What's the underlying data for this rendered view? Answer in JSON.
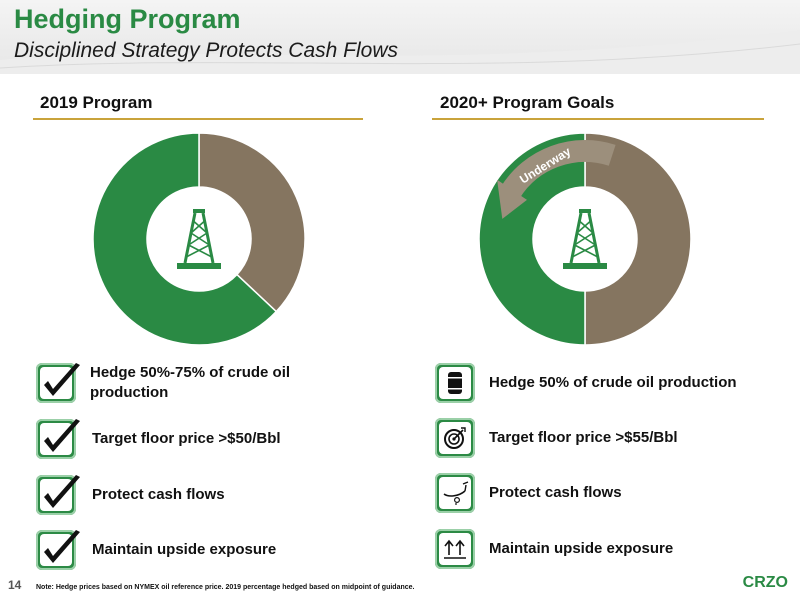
{
  "header": {
    "title": "Hedging Program",
    "subtitle": "Disciplined Strategy Protects Cash Flows"
  },
  "left": {
    "title": "2019 Program",
    "chart_data": {
      "type": "pie",
      "style": "donut",
      "slices": [
        {
          "value": 37,
          "color": "#857560"
        },
        {
          "value": 63,
          "color": "#2a8a44"
        }
      ],
      "center_icon": "oil-derrick-icon"
    },
    "items": [
      {
        "icon": "checkmark-icon",
        "label": "Hedge 50%-75% of crude oil production"
      },
      {
        "icon": "checkmark-icon",
        "label": "Target floor price >$50/Bbl"
      },
      {
        "icon": "checkmark-icon",
        "label": "Protect cash flows"
      },
      {
        "icon": "checkmark-icon",
        "label": "Maintain upside exposure"
      }
    ]
  },
  "right": {
    "title": "2020+ Program Goals",
    "chart_data": {
      "type": "pie",
      "style": "donut",
      "slices": [
        {
          "value": 50,
          "color": "#857560"
        },
        {
          "value": 50,
          "color": "#2a8a44"
        }
      ],
      "arrow_label": "Underway",
      "center_icon": "oil-derrick-icon"
    },
    "items": [
      {
        "icon": "oil-barrel-icon",
        "label": "Hedge 50% of crude oil production"
      },
      {
        "icon": "target-icon",
        "label": "Target floor price >$55/Bbl"
      },
      {
        "icon": "piggy-bank-icon",
        "label": "Protect cash flows"
      },
      {
        "icon": "upward-arrows-icon",
        "label": "Maintain upside exposure"
      }
    ]
  },
  "footer": {
    "page_number": "14",
    "note": "Note: Hedge prices based on NYMEX oil reference price. 2019 percentage hedged based on midpoint of guidance.",
    "brand": "CRZO"
  },
  "colors": {
    "green": "#2a8a44",
    "taupe": "#857560",
    "gold": "#c9a33b"
  }
}
